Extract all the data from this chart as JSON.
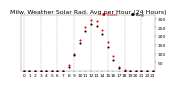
{
  "title": "Milw. Weather Solar Rad. Avg per Hour (24 Hours)",
  "hours": [
    0,
    1,
    2,
    3,
    4,
    5,
    6,
    7,
    8,
    9,
    10,
    11,
    12,
    13,
    14,
    15,
    16,
    17,
    18,
    19,
    20,
    21,
    22,
    23
  ],
  "solar_radiation": [
    0,
    0,
    0,
    0,
    0,
    0,
    0,
    2,
    35,
    100,
    175,
    250,
    295,
    285,
    235,
    165,
    85,
    25,
    3,
    0,
    0,
    0,
    0,
    0
  ],
  "avg_radiation": [
    0,
    0,
    0,
    0,
    0,
    0,
    0,
    0,
    20,
    90,
    160,
    230,
    270,
    260,
    210,
    140,
    65,
    15,
    0,
    0,
    0,
    0,
    0,
    0
  ],
  "dot_color": "#ff0000",
  "avg_color": "#000000",
  "bg_color": "#ffffff",
  "grid_color": "#aaaaaa",
  "ylim": [
    0,
    320
  ],
  "yticks": [
    50,
    100,
    150,
    200,
    250,
    300
  ],
  "title_fontsize": 4.5,
  "tick_fontsize": 3.2,
  "dot_size": 1.5,
  "grid_every": 3
}
